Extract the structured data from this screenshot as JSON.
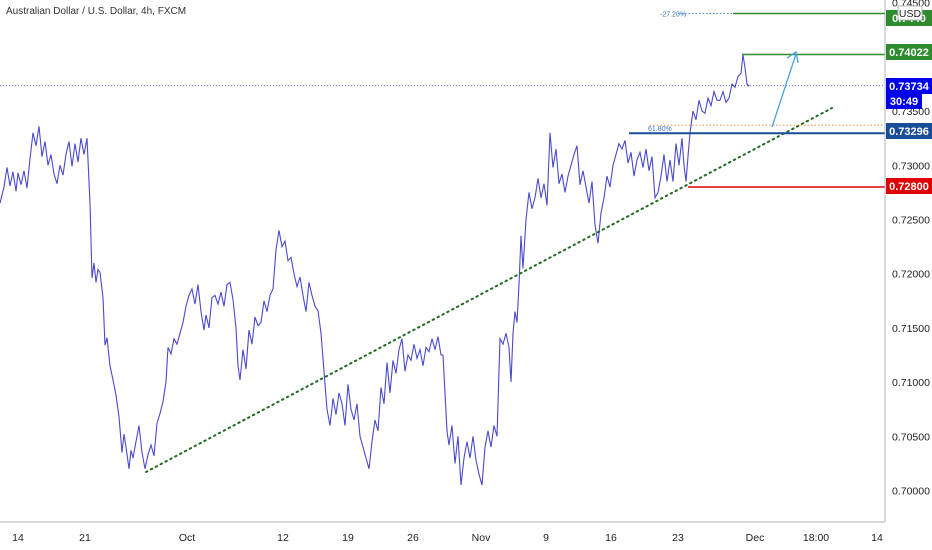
{
  "title": "Australian Dollar / U.S. Dollar, 4h, FXCM",
  "currency": "USD",
  "colors": {
    "price_line": "#4a4acd",
    "trendline": "#1f6b1f",
    "support": "#1a4d99",
    "resistance_tp": "#2e8b2e",
    "stop": "#e00000",
    "current": "#0000ee",
    "projection": "#4aa3df",
    "fib_label": "#3a7ac2",
    "orange_dot": "#e08a1e"
  },
  "chart_data": {
    "type": "line",
    "y_ticks": [
      "0.74500",
      "0.73500",
      "0.73000",
      "0.72500",
      "0.72000",
      "0.71500",
      "0.71000",
      "0.70500",
      "0.70000"
    ],
    "x_ticks": [
      "14",
      "21",
      "Oct",
      "12",
      "19",
      "26",
      "Nov",
      "9",
      "16",
      "23",
      "Dec",
      "18:00",
      "14"
    ],
    "ylim": [
      0.6983,
      0.7475
    ],
    "series": [
      {
        "values": [
          [
            0,
            0.7265
          ],
          [
            4,
            0.728
          ],
          [
            7,
            0.7298
          ],
          [
            10,
            0.7281
          ],
          [
            13,
            0.7294
          ],
          [
            16,
            0.7276
          ],
          [
            18,
            0.7293
          ],
          [
            21,
            0.7282
          ],
          [
            24,
            0.7295
          ],
          [
            27,
            0.7279
          ],
          [
            30,
            0.7306
          ],
          [
            33,
            0.733
          ],
          [
            36,
            0.7318
          ],
          [
            39,
            0.7336
          ],
          [
            42,
            0.7308
          ],
          [
            45,
            0.7322
          ],
          [
            48,
            0.73
          ],
          [
            51,
            0.731
          ],
          [
            54,
            0.7292
          ],
          [
            57,
            0.7283
          ],
          [
            60,
            0.73
          ],
          [
            63,
            0.7291
          ],
          [
            66,
            0.731
          ],
          [
            69,
            0.7322
          ],
          [
            72,
            0.7299
          ],
          [
            75,
            0.732
          ],
          [
            78,
            0.7303
          ],
          [
            81,
            0.7325
          ],
          [
            84,
            0.731
          ],
          [
            87,
            0.7325
          ],
          [
            90,
            0.7265
          ],
          [
            92,
            0.7196
          ],
          [
            94,
            0.721
          ],
          [
            96,
            0.7192
          ],
          [
            98,
            0.7204
          ],
          [
            100,
            0.7201
          ],
          [
            103,
            0.7178
          ],
          [
            105,
            0.7134
          ],
          [
            107,
            0.7141
          ],
          [
            110,
            0.7115
          ],
          [
            113,
            0.7102
          ],
          [
            116,
            0.7088
          ],
          [
            119,
            0.7068
          ],
          [
            122,
            0.7035
          ],
          [
            124,
            0.7052
          ],
          [
            126,
            0.704
          ],
          [
            129,
            0.702
          ],
          [
            131,
            0.7037
          ],
          [
            133,
            0.703
          ],
          [
            136,
            0.7045
          ],
          [
            139,
            0.706
          ],
          [
            142,
            0.7035
          ],
          [
            145,
            0.702
          ],
          [
            148,
            0.7033
          ],
          [
            151,
            0.7042
          ],
          [
            154,
            0.7032
          ],
          [
            157,
            0.7062
          ],
          [
            160,
            0.7071
          ],
          [
            163,
            0.7082
          ],
          [
            166,
            0.71
          ],
          [
            168,
            0.7132
          ],
          [
            171,
            0.7126
          ],
          [
            174,
            0.714
          ],
          [
            177,
            0.7135
          ],
          [
            180,
            0.7145
          ],
          [
            183,
            0.7155
          ],
          [
            186,
            0.717
          ],
          [
            189,
            0.718
          ],
          [
            192,
            0.7186
          ],
          [
            195,
            0.7172
          ],
          [
            198,
            0.719
          ],
          [
            201,
            0.7165
          ],
          [
            204,
            0.7148
          ],
          [
            206,
            0.7162
          ],
          [
            209,
            0.715
          ],
          [
            212,
            0.7178
          ],
          [
            215,
            0.718
          ],
          [
            218,
            0.7172
          ],
          [
            221,
            0.7183
          ],
          [
            224,
            0.717
          ],
          [
            227,
            0.719
          ],
          [
            230,
            0.7192
          ],
          [
            233,
            0.7176
          ],
          [
            236,
            0.715
          ],
          [
            238,
            0.7115
          ],
          [
            240,
            0.7102
          ],
          [
            243,
            0.713
          ],
          [
            246,
            0.7112
          ],
          [
            249,
            0.7148
          ],
          [
            252,
            0.7135
          ],
          [
            255,
            0.716
          ],
          [
            258,
            0.7152
          ],
          [
            261,
            0.7155
          ],
          [
            264,
            0.7175
          ],
          [
            267,
            0.7165
          ],
          [
            270,
            0.718
          ],
          [
            273,
            0.7186
          ],
          [
            276,
            0.7222
          ],
          [
            279,
            0.724
          ],
          [
            282,
            0.7225
          ],
          [
            285,
            0.723
          ],
          [
            288,
            0.7212
          ],
          [
            291,
            0.7215
          ],
          [
            294,
            0.72
          ],
          [
            297,
            0.7188
          ],
          [
            300,
            0.7197
          ],
          [
            303,
            0.718
          ],
          [
            306,
            0.7165
          ],
          [
            309,
            0.7192
          ],
          [
            312,
            0.718
          ],
          [
            315,
            0.717
          ],
          [
            318,
            0.7166
          ],
          [
            321,
            0.7145
          ],
          [
            324,
            0.711
          ],
          [
            327,
            0.7075
          ],
          [
            330,
            0.706
          ],
          [
            333,
            0.7085
          ],
          [
            336,
            0.707
          ],
          [
            339,
            0.709
          ],
          [
            342,
            0.708
          ],
          [
            345,
            0.706
          ],
          [
            348,
            0.7098
          ],
          [
            351,
            0.7075
          ],
          [
            354,
            0.7065
          ],
          [
            357,
            0.708
          ],
          [
            360,
            0.705
          ],
          [
            363,
            0.704
          ],
          [
            366,
            0.703
          ],
          [
            369,
            0.702
          ],
          [
            372,
            0.7045
          ],
          [
            375,
            0.7065
          ],
          [
            378,
            0.7055
          ],
          [
            381,
            0.7095
          ],
          [
            384,
            0.708
          ],
          [
            387,
            0.7118
          ],
          [
            390,
            0.709
          ],
          [
            393,
            0.712
          ],
          [
            396,
            0.7108
          ],
          [
            399,
            0.713
          ],
          [
            402,
            0.714
          ],
          [
            405,
            0.711
          ],
          [
            408,
            0.7125
          ],
          [
            411,
            0.712
          ],
          [
            414,
            0.7135
          ],
          [
            417,
            0.7122
          ],
          [
            420,
            0.713
          ],
          [
            423,
            0.7115
          ],
          [
            426,
            0.7132
          ],
          [
            429,
            0.7128
          ],
          [
            432,
            0.714
          ],
          [
            435,
            0.713
          ],
          [
            438,
            0.7142
          ],
          [
            441,
            0.7125
          ],
          [
            443,
            0.7125
          ],
          [
            445,
            0.709
          ],
          [
            447,
            0.7055
          ],
          [
            449,
            0.7042
          ],
          [
            452,
            0.706
          ],
          [
            455,
            0.7025
          ],
          [
            458,
            0.705
          ],
          [
            461,
            0.7005
          ],
          [
            464,
            0.703
          ],
          [
            467,
            0.7045
          ],
          [
            470,
            0.703
          ],
          [
            473,
            0.705
          ],
          [
            476,
            0.7028
          ],
          [
            479,
            0.7015
          ],
          [
            482,
            0.7005
          ],
          [
            485,
            0.704
          ],
          [
            488,
            0.7055
          ],
          [
            491,
            0.704
          ],
          [
            494,
            0.706
          ],
          [
            497,
            0.705
          ],
          [
            500,
            0.714
          ],
          [
            503,
            0.7135
          ],
          [
            506,
            0.7145
          ],
          [
            509,
            0.7132
          ],
          [
            511,
            0.71
          ],
          [
            513,
            0.7145
          ],
          [
            515,
            0.7165
          ],
          [
            517,
            0.7155
          ],
          [
            519,
            0.719
          ],
          [
            521,
            0.7235
          ],
          [
            523,
            0.7205
          ],
          [
            526,
            0.725
          ],
          [
            529,
            0.7275
          ],
          [
            532,
            0.726
          ],
          [
            535,
            0.727
          ],
          [
            538,
            0.7288
          ],
          [
            541,
            0.727
          ],
          [
            544,
            0.7283
          ],
          [
            547,
            0.7263
          ],
          [
            550,
            0.733
          ],
          [
            553,
            0.7298
          ],
          [
            556,
            0.7315
          ],
          [
            559,
            0.7283
          ],
          [
            562,
            0.7292
          ],
          [
            565,
            0.7275
          ],
          [
            568,
            0.729
          ],
          [
            571,
            0.73
          ],
          [
            574,
            0.731
          ],
          [
            577,
            0.7318
          ],
          [
            580,
            0.7282
          ],
          [
            583,
            0.7295
          ],
          [
            586,
            0.728
          ],
          [
            589,
            0.7265
          ],
          [
            592,
            0.7285
          ],
          [
            595,
            0.7245
          ],
          [
            598,
            0.7228
          ],
          [
            601,
            0.7256
          ],
          [
            604,
            0.727
          ],
          [
            607,
            0.729
          ],
          [
            610,
            0.728
          ],
          [
            613,
            0.73
          ],
          [
            616,
            0.731
          ],
          [
            619,
            0.732
          ],
          [
            622,
            0.7315
          ],
          [
            625,
            0.7323
          ],
          [
            628,
            0.7302
          ],
          [
            631,
            0.7312
          ],
          [
            634,
            0.729
          ],
          [
            637,
            0.7305
          ],
          [
            640,
            0.7312
          ],
          [
            643,
            0.7298
          ],
          [
            646,
            0.7315
          ],
          [
            649,
            0.7295
          ],
          [
            652,
            0.7308
          ],
          [
            655,
            0.727
          ],
          [
            658,
            0.7275
          ],
          [
            661,
            0.729
          ],
          [
            664,
            0.731
          ],
          [
            667,
            0.7285
          ],
          [
            670,
            0.7305
          ],
          [
            673,
            0.7285
          ],
          [
            676,
            0.732
          ],
          [
            679,
            0.73
          ],
          [
            682,
            0.7325
          ],
          [
            684,
            0.73
          ],
          [
            686,
            0.7285
          ],
          [
            688,
            0.7308
          ],
          [
            690,
            0.733
          ],
          [
            693,
            0.735
          ],
          [
            696,
            0.7342
          ],
          [
            699,
            0.736
          ],
          [
            702,
            0.735
          ],
          [
            705,
            0.7348
          ],
          [
            708,
            0.7362
          ],
          [
            711,
            0.7355
          ],
          [
            714,
            0.7368
          ],
          [
            717,
            0.736
          ],
          [
            720,
            0.736
          ],
          [
            723,
            0.7368
          ],
          [
            726,
            0.7358
          ],
          [
            729,
            0.7362
          ],
          [
            732,
            0.7375
          ],
          [
            735,
            0.7372
          ],
          [
            738,
            0.7382
          ],
          [
            741,
            0.7385
          ],
          [
            743,
            0.7402
          ],
          [
            745,
            0.739
          ],
          [
            747,
            0.7375
          ],
          [
            749,
            0.7373
          ]
        ]
      }
    ],
    "levels": [
      {
        "id": "tp2",
        "price": "0.7440",
        "label": "0.7440",
        "color": "#2e8b2e"
      },
      {
        "id": "tp1",
        "price": "0.74022",
        "label": "0.74022",
        "color": "#2e8b2e"
      },
      {
        "id": "current",
        "price": "0.73734",
        "label": "0.73734",
        "color": "#0000ee"
      },
      {
        "id": "timer",
        "price": "",
        "label": "30:49",
        "color": "#0000ee"
      },
      {
        "id": "support",
        "price": "0.73296",
        "label": "0.73296",
        "color": "#1a4d99"
      },
      {
        "id": "stop",
        "price": "0.72800",
        "label": "0.72800",
        "color": "#e00000"
      }
    ],
    "annotations": [
      "-27.20%",
      "61.80%"
    ],
    "grid": false
  }
}
